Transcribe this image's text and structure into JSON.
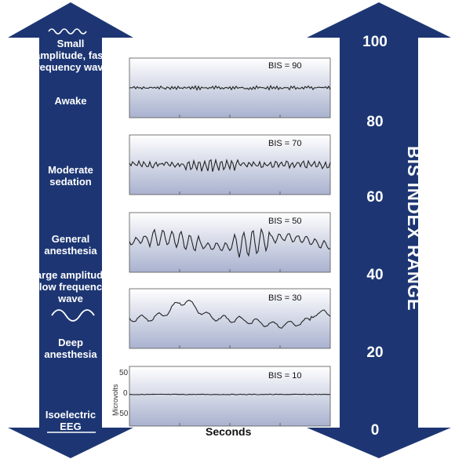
{
  "colors": {
    "arrow": "#1d3673",
    "panel_top": "#ffffff",
    "panel_bottom": "#a9b2cf",
    "trace": "#222222"
  },
  "left_labels": {
    "small_wave_title": "Small amplitude, fast frequency wave",
    "awake": "Awake",
    "moderate": "Moderate sedation",
    "general": "General anesthesia",
    "large_wave_title": "Large amplitude, slow frequency wave",
    "deep": "Deep anesthesia",
    "isoelectric": "Isoelectric EEG"
  },
  "range": {
    "title": "BIS INDEX RANGE",
    "ticks": [
      "100",
      "80",
      "60",
      "40",
      "20",
      "0"
    ]
  },
  "panels": [
    {
      "label": "BIS = 90"
    },
    {
      "label": "BIS = 70"
    },
    {
      "label": "BIS = 50"
    },
    {
      "label": "BIS = 30"
    },
    {
      "label": "BIS = 10"
    }
  ],
  "axis": {
    "xlabel": "Seconds",
    "ylabel": "Microvolts",
    "yticks": [
      "50",
      "0",
      "-50"
    ]
  }
}
